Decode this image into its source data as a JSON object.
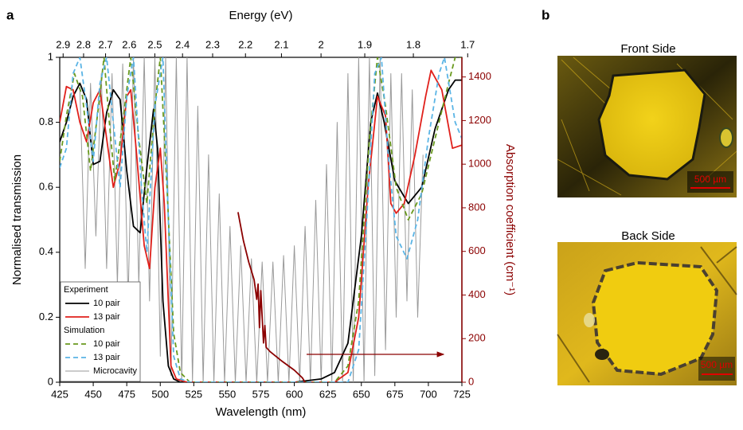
{
  "panel_labels": [
    "a",
    "b"
  ],
  "images": [
    {
      "title": "Front Side",
      "scale_bar": "500 µm"
    },
    {
      "title": "Back Side",
      "scale_bar": "500 µm"
    }
  ],
  "chart_data": {
    "type": "line",
    "x_label": "Wavelength (nm)",
    "x2_label": "Energy (eV)",
    "y_label": "Normalised transmission",
    "y2_label": "Absorption coefficient (cm⁻¹)",
    "xlim": [
      425,
      725
    ],
    "xticks": [
      425,
      450,
      475,
      500,
      525,
      550,
      575,
      600,
      625,
      650,
      675,
      700,
      725
    ],
    "x2ticks": [
      2.9,
      2.8,
      2.7,
      2.6,
      2.5,
      2.4,
      2.3,
      2.2,
      2.1,
      2,
      1.9,
      1.8,
      1.7
    ],
    "ylim": [
      0,
      1
    ],
    "yticks": [
      0,
      0.2,
      0.4,
      0.6,
      0.8,
      1
    ],
    "y2lim": [
      0,
      1490
    ],
    "y2ticks": [
      0,
      200,
      400,
      600,
      800,
      1000,
      1200,
      1400
    ],
    "y2_color": "#8b0000",
    "legend_groups": [
      "Experiment",
      "Simulation"
    ],
    "series": [
      {
        "name": "10 pair",
        "color": "#000000",
        "dash": false,
        "x": [
          425,
          430,
          435,
          440,
          445,
          450,
          455,
          460,
          465,
          470,
          475,
          480,
          485,
          490,
          495,
          498,
          502,
          506,
          510,
          515,
          600,
          620,
          630,
          640,
          650,
          657,
          662,
          667,
          675,
          685,
          695,
          705,
          715,
          720,
          725
        ],
        "values": [
          0.74,
          0.8,
          0.88,
          0.92,
          0.87,
          0.67,
          0.68,
          0.83,
          0.9,
          0.87,
          0.65,
          0.48,
          0.46,
          0.66,
          0.84,
          0.72,
          0.25,
          0.05,
          0.01,
          0,
          0,
          0.01,
          0.03,
          0.12,
          0.45,
          0.8,
          0.89,
          0.8,
          0.62,
          0.55,
          0.6,
          0.78,
          0.9,
          0.93,
          0.93
        ]
      },
      {
        "name": "13 pair",
        "color": "#e0201b",
        "dash": false,
        "x": [
          425,
          430,
          435,
          440,
          445,
          450,
          455,
          460,
          465,
          470,
          475,
          478,
          482,
          488,
          492,
          496,
          500,
          503,
          508,
          512,
          520,
          630,
          640,
          648,
          655,
          662,
          668,
          672,
          676,
          682,
          690,
          698,
          702,
          710,
          718,
          725
        ],
        "values": [
          0.8,
          0.91,
          0.9,
          0.8,
          0.74,
          0.86,
          0.9,
          0.75,
          0.6,
          0.68,
          0.88,
          0.9,
          0.72,
          0.42,
          0.35,
          0.6,
          0.72,
          0.55,
          0.05,
          0.01,
          0,
          0,
          0.03,
          0.2,
          0.6,
          0.88,
          0.82,
          0.55,
          0.52,
          0.55,
          0.7,
          0.88,
          0.96,
          0.9,
          0.72,
          0.73
        ]
      },
      {
        "name": "10 pair",
        "color": "#6a9a1f",
        "dash": true,
        "x": [
          425,
          430,
          436,
          442,
          448,
          454,
          458,
          462,
          466,
          472,
          478,
          484,
          490,
          496,
          500,
          505,
          510,
          515,
          522,
          630,
          640,
          648,
          656,
          662,
          668,
          676,
          685,
          695,
          705,
          715,
          720,
          725
        ],
        "values": [
          0.68,
          0.82,
          0.95,
          0.88,
          0.65,
          0.85,
          1.0,
          0.8,
          0.62,
          0.8,
          1.0,
          0.75,
          0.55,
          0.85,
          1.0,
          0.6,
          0.15,
          0.03,
          0,
          0,
          0.05,
          0.25,
          0.75,
          1.0,
          0.85,
          0.6,
          0.5,
          0.58,
          0.75,
          0.92,
          1.0,
          1.0
        ]
      },
      {
        "name": "13 pair",
        "color": "#5ab4e5",
        "dash": true,
        "x": [
          425,
          430,
          435,
          440,
          445,
          450,
          455,
          460,
          465,
          470,
          475,
          480,
          486,
          490,
          496,
          502,
          506,
          510,
          515,
          522,
          640,
          648,
          654,
          660,
          665,
          670,
          676,
          684,
          692,
          700,
          708,
          712,
          720,
          725
        ],
        "values": [
          0.66,
          0.72,
          0.95,
          1.0,
          0.85,
          0.68,
          0.92,
          1.0,
          0.8,
          0.6,
          0.88,
          1.0,
          0.6,
          0.4,
          0.85,
          1.0,
          0.5,
          0.08,
          0.01,
          0,
          0,
          0.1,
          0.5,
          0.95,
          1.0,
          0.7,
          0.45,
          0.38,
          0.5,
          0.75,
          0.95,
          1.0,
          0.8,
          0.75
        ]
      },
      {
        "name": "Microcavity",
        "color": "#9a9a9a",
        "dash": false,
        "thin": true,
        "x": [
          440,
          444,
          448,
          452,
          456,
          460,
          464,
          468,
          472,
          476,
          480,
          484,
          488,
          492,
          496,
          500,
          504,
          508,
          512,
          516,
          520,
          524,
          528,
          532,
          536,
          540,
          544,
          548,
          552,
          556,
          560,
          564,
          568,
          572,
          576,
          580,
          584,
          588,
          592,
          596,
          600,
          604,
          608,
          612,
          616,
          620,
          624,
          628,
          632,
          636,
          640,
          644,
          648,
          652,
          656,
          660,
          664,
          668,
          672,
          676,
          680,
          684,
          688,
          692,
          696
        ],
        "values": [
          0.9,
          0.35,
          0.92,
          0.45,
          0.95,
          0.35,
          0.95,
          0.3,
          0.98,
          0.25,
          1.0,
          0.3,
          1.0,
          0.25,
          1.0,
          0.08,
          1.0,
          0.02,
          1.0,
          0,
          1.0,
          0,
          0.85,
          0,
          0.7,
          0,
          0.58,
          0,
          0.48,
          0,
          0.42,
          0,
          0.38,
          0,
          0.37,
          0,
          0.37,
          0,
          0.39,
          0,
          0.42,
          0,
          0.48,
          0,
          0.56,
          0,
          0.67,
          0,
          0.8,
          0,
          0.95,
          0,
          1.0,
          0,
          1.0,
          0.02,
          1.0,
          0.1,
          0.95,
          0.2,
          0.95,
          0.25,
          0.9,
          0.2,
          0.7
        ]
      },
      {
        "name": null,
        "color": "#8b0000",
        "dash": false,
        "axis": "y2",
        "x": [
          558,
          562,
          566,
          570,
          572,
          573,
          574,
          575,
          576,
          577,
          578,
          579,
          582,
          590,
          600,
          606,
          608
        ],
        "values": [
          780,
          650,
          550,
          470,
          380,
          450,
          250,
          420,
          300,
          180,
          260,
          160,
          140,
          100,
          55,
          20,
          0
        ]
      }
    ]
  }
}
